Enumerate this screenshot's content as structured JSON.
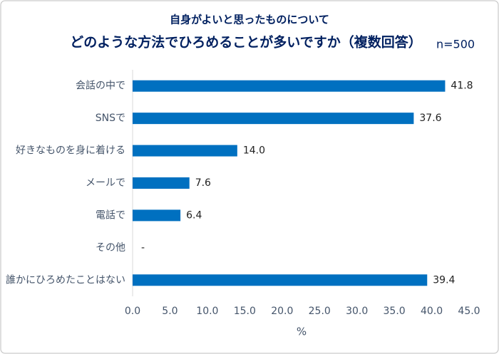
{
  "chart_data": {
    "type": "hbar",
    "title": "自身がよいと思ったものについて",
    "subtitle": "どのような方法でひろめることが多いですか（複数回答）",
    "annotation": "n=500",
    "x_label": "%",
    "categories": [
      "会話の中で",
      "SNSで",
      "好きなものを身に着ける",
      "メールで",
      "電話で",
      "その他",
      "誰かにひろめたことはない"
    ],
    "values": [
      41.8,
      37.6,
      14.0,
      7.6,
      6.4,
      null,
      39.4
    ],
    "value_labels": [
      "41.8",
      "37.6",
      "14.0",
      "7.6",
      "6.4",
      "-",
      "39.4"
    ],
    "color": "#0070c0",
    "xlim": [
      0,
      45
    ],
    "xticks": [
      {
        "value": 0,
        "label": "0.0"
      },
      {
        "value": 5,
        "label": "5.0"
      },
      {
        "value": 10,
        "label": "10.0"
      },
      {
        "value": 15,
        "label": "15.0"
      },
      {
        "value": 20,
        "label": "20.0"
      },
      {
        "value": 25,
        "label": "25.0"
      },
      {
        "value": 30,
        "label": "30.0"
      },
      {
        "value": 35,
        "label": "35.0"
      },
      {
        "value": 40,
        "label": "40.0"
      },
      {
        "value": 45,
        "label": "45.0"
      }
    ],
    "grid": false
  }
}
